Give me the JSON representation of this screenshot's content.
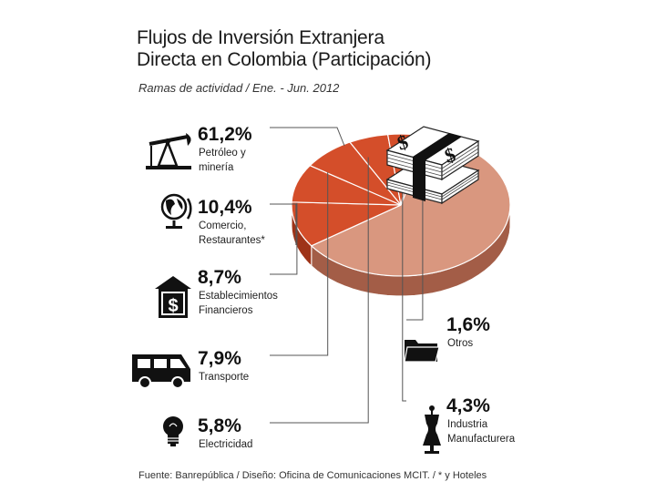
{
  "header": {
    "title_line1": "Flujos de Inversión Extranjera",
    "title_line2": "Directa en Colombia (Participación)",
    "subtitle": "Ramas de actividad / Ene. - Jun. 2012"
  },
  "footer": {
    "source": "Fuente: Banrepública / Diseño: Oficina de Comunicaciones MCIT. / * y Hoteles"
  },
  "chart_data": {
    "type": "pie",
    "unit": "%",
    "categories": [
      "Petróleo y minería",
      "Comercio, Restaurantes*",
      "Establecimientos Financieros",
      "Transporte",
      "Electricidad",
      "Industria Manufacturera",
      "Otros"
    ],
    "values": [
      61.2,
      10.4,
      8.7,
      7.9,
      5.8,
      4.3,
      1.6
    ],
    "value_labels": [
      "61,2%",
      "10,4%",
      "8,7%",
      "7,9%",
      "5,8%",
      "4,3%",
      "1,6%"
    ],
    "label_lines": [
      [
        "Petróleo y",
        "minería"
      ],
      [
        "Comercio,",
        "Restaurantes*"
      ],
      [
        "Establecimientos",
        "Financieros"
      ],
      [
        "Transporte"
      ],
      [
        "Electricidad"
      ],
      [
        "Industria",
        "Manufacturera"
      ],
      [
        "Otros"
      ]
    ],
    "icons": [
      "oil-pump-icon",
      "globe-icon",
      "bank-dollar-icon",
      "van-icon",
      "lightbulb-icon",
      "dress-form-icon",
      "folder-icon"
    ],
    "colors": [
      "#d9977f",
      "#d44e2a",
      "#d44e2a",
      "#d44e2a",
      "#d44e2a",
      "#d44e2a",
      "#d44e2a"
    ],
    "side_colors": [
      "#a35d47",
      "#9e3318",
      "#9e3318",
      "#9e3318",
      "#9e3318",
      "#9e3318",
      "#9e3318"
    ],
    "decoration": "dollar-bills-icon",
    "legend": "none"
  }
}
